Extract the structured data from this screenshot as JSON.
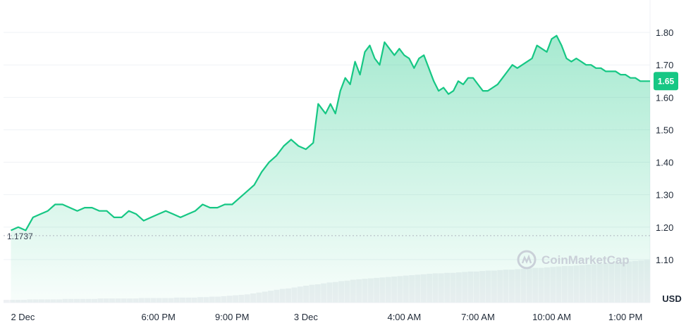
{
  "chart_data": {
    "type": "area",
    "currency_label": "USD",
    "y_ticks": [
      "1.80",
      "1.70",
      "1.60",
      "1.50",
      "1.40",
      "1.30",
      "1.20",
      "1.10"
    ],
    "ylim": [
      1.0,
      1.9
    ],
    "x_tick_labels": [
      "2 Dec",
      "6:00 PM",
      "9:00 PM",
      "3 Dec",
      "4:00 AM",
      "7:00 AM",
      "10:00 AM",
      "1:00 PM"
    ],
    "x_tick_hours": [
      0,
      6,
      9,
      12,
      16,
      19,
      22,
      25
    ],
    "xlim": [
      -0.3,
      26.0
    ],
    "reference_value": 1.1737,
    "reference_label": "1.1737",
    "current_value": 1.65,
    "current_label": "1.65",
    "watermark": "CoinMarketCap",
    "colors": {
      "line": "#16c784",
      "badge": "#16c784",
      "grid": "#eff2f5",
      "volume": "#eef0f3",
      "ref": "#b0b5bf"
    },
    "series": [
      {
        "x": [
          0.0,
          0.3,
          0.6,
          0.9,
          1.2,
          1.5,
          1.8,
          2.1,
          2.4,
          2.7,
          3.0,
          3.3,
          3.6,
          3.9,
          4.2,
          4.5,
          4.8,
          5.1,
          5.4,
          5.7,
          6.0,
          6.3,
          6.6,
          6.9,
          7.2,
          7.5,
          7.8,
          8.1,
          8.4,
          8.7,
          9.0,
          9.3,
          9.6,
          9.9,
          10.2,
          10.5,
          10.8,
          11.1,
          11.4,
          11.7,
          12.0,
          12.3,
          12.5,
          12.8,
          13.0,
          13.2,
          13.4,
          13.6,
          13.8,
          14.0,
          14.2,
          14.4,
          14.6,
          14.8,
          15.0,
          15.2,
          15.4,
          15.6,
          15.8,
          16.0,
          16.2,
          16.4,
          16.6,
          16.8,
          17.0,
          17.2,
          17.4,
          17.6,
          17.8,
          18.0,
          18.2,
          18.4,
          18.6,
          18.8,
          19.0,
          19.2,
          19.4,
          19.6,
          19.8,
          20.0,
          20.2,
          20.4,
          20.6,
          20.8,
          21.0,
          21.2,
          21.4,
          21.6,
          21.8,
          22.0,
          22.2,
          22.4,
          22.6,
          22.8,
          23.0,
          23.2,
          23.4,
          23.6,
          23.8,
          24.0,
          24.2,
          24.4,
          24.6,
          24.8,
          25.0,
          25.2,
          25.4,
          25.6,
          25.8,
          26.0
        ],
        "y": [
          1.19,
          1.2,
          1.19,
          1.23,
          1.24,
          1.25,
          1.27,
          1.27,
          1.26,
          1.25,
          1.26,
          1.26,
          1.25,
          1.25,
          1.23,
          1.23,
          1.25,
          1.24,
          1.22,
          1.23,
          1.24,
          1.25,
          1.24,
          1.23,
          1.24,
          1.25,
          1.27,
          1.26,
          1.26,
          1.27,
          1.27,
          1.29,
          1.31,
          1.33,
          1.37,
          1.4,
          1.42,
          1.45,
          1.47,
          1.45,
          1.44,
          1.46,
          1.58,
          1.55,
          1.58,
          1.55,
          1.62,
          1.66,
          1.64,
          1.71,
          1.67,
          1.74,
          1.76,
          1.72,
          1.7,
          1.77,
          1.75,
          1.73,
          1.75,
          1.73,
          1.72,
          1.69,
          1.72,
          1.73,
          1.69,
          1.65,
          1.62,
          1.63,
          1.61,
          1.62,
          1.65,
          1.64,
          1.66,
          1.66,
          1.64,
          1.62,
          1.62,
          1.63,
          1.64,
          1.66,
          1.68,
          1.7,
          1.69,
          1.7,
          1.71,
          1.72,
          1.76,
          1.75,
          1.74,
          1.78,
          1.79,
          1.76,
          1.72,
          1.71,
          1.72,
          1.71,
          1.7,
          1.7,
          1.69,
          1.69,
          1.68,
          1.68,
          1.68,
          1.67,
          1.67,
          1.66,
          1.66,
          1.65,
          1.65,
          1.65
        ]
      }
    ],
    "volume": [
      0.06,
      0.06,
      0.06,
      0.06,
      0.07,
      0.07,
      0.07,
      0.07,
      0.07,
      0.07,
      0.08,
      0.08,
      0.08,
      0.08,
      0.08,
      0.08,
      0.09,
      0.09,
      0.09,
      0.09,
      0.09,
      0.09,
      0.09,
      0.1,
      0.1,
      0.1,
      0.1,
      0.1,
      0.1,
      0.11,
      0.11,
      0.11,
      0.11,
      0.12,
      0.12,
      0.13,
      0.13,
      0.14,
      0.15,
      0.16,
      0.17,
      0.18,
      0.2,
      0.22,
      0.24,
      0.26,
      0.28,
      0.3,
      0.31,
      0.33,
      0.35,
      0.37,
      0.39,
      0.4,
      0.42,
      0.44,
      0.45,
      0.47,
      0.48,
      0.5,
      0.51,
      0.52,
      0.53,
      0.54,
      0.55,
      0.56,
      0.57,
      0.58,
      0.59,
      0.6,
      0.61,
      0.62,
      0.63,
      0.64,
      0.64,
      0.65,
      0.65,
      0.66,
      0.67,
      0.68,
      0.68,
      0.69,
      0.7,
      0.7,
      0.71,
      0.72,
      0.72,
      0.73,
      0.74,
      0.75,
      0.76,
      0.76,
      0.77,
      0.78,
      0.79,
      0.8,
      0.8,
      0.81,
      0.82,
      0.83,
      0.84,
      0.85,
      0.86,
      0.87,
      0.88,
      0.89,
      0.9,
      0.91,
      0.92,
      0.93
    ]
  }
}
